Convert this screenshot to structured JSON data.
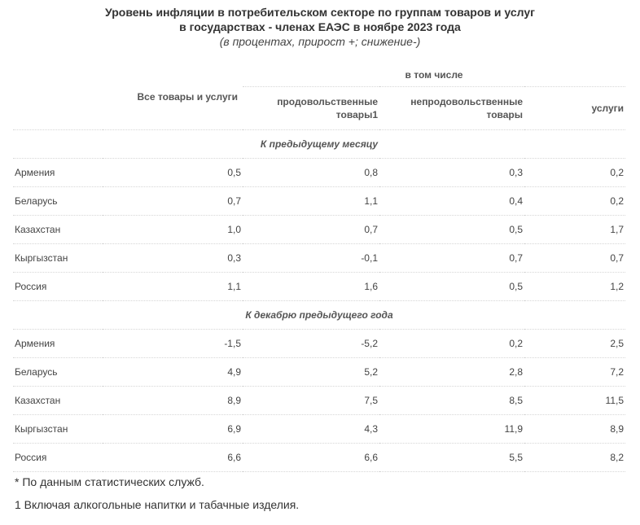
{
  "title": {
    "line1": "Уровень инфляции в потребительском секторе по группам товаров и услуг",
    "line2": "в государствах - членах ЕАЭС в ноябре 2023 года",
    "subtitle": "(в процентах, прирост +; снижение-)"
  },
  "table": {
    "group_header": "в том числе",
    "col_all": "Все товары и услуги",
    "col_food_line1": "продовольственные",
    "col_food_line2": "товары1",
    "col_nonfood_line1": "непродовольственные",
    "col_nonfood_line2": "товары",
    "col_services": "услуги",
    "sections": [
      {
        "title": "К предыдущему месяцу",
        "rows": [
          {
            "country": "Армения",
            "all": "0,5",
            "food": "0,8",
            "nonfood": "0,3",
            "services": "0,2"
          },
          {
            "country": "Беларусь",
            "all": "0,7",
            "food": "1,1",
            "nonfood": "0,4",
            "services": "0,2"
          },
          {
            "country": "Казахстан",
            "all": "1,0",
            "food": "0,7",
            "nonfood": "0,5",
            "services": "1,7"
          },
          {
            "country": "Кыргызстан",
            "all": "0,3",
            "food": "-0,1",
            "nonfood": "0,7",
            "services": "0,7"
          },
          {
            "country": "Россия",
            "all": "1,1",
            "food": "1,6",
            "nonfood": "0,5",
            "services": "1,2"
          }
        ]
      },
      {
        "title": "К декабрю предыдущего года",
        "rows": [
          {
            "country": "Армения",
            "all": "-1,5",
            "food": "-5,2",
            "nonfood": "0,2",
            "services": "2,5"
          },
          {
            "country": "Беларусь",
            "all": "4,9",
            "food": "5,2",
            "nonfood": "2,8",
            "services": "7,2"
          },
          {
            "country": "Казахстан",
            "all": "8,9",
            "food": "7,5",
            "nonfood": "8,5",
            "services": "11,5"
          },
          {
            "country": "Кыргызстан",
            "all": "6,9",
            "food": "4,3",
            "nonfood": "11,9",
            "services": "8,9"
          },
          {
            "country": "Россия",
            "all": "6,6",
            "food": "6,6",
            "nonfood": "5,5",
            "services": "8,2"
          }
        ]
      }
    ]
  },
  "notes": {
    "star": "* По данным статистических служб.",
    "one": "1 Включая алкогольные напитки и табачные изделия."
  }
}
